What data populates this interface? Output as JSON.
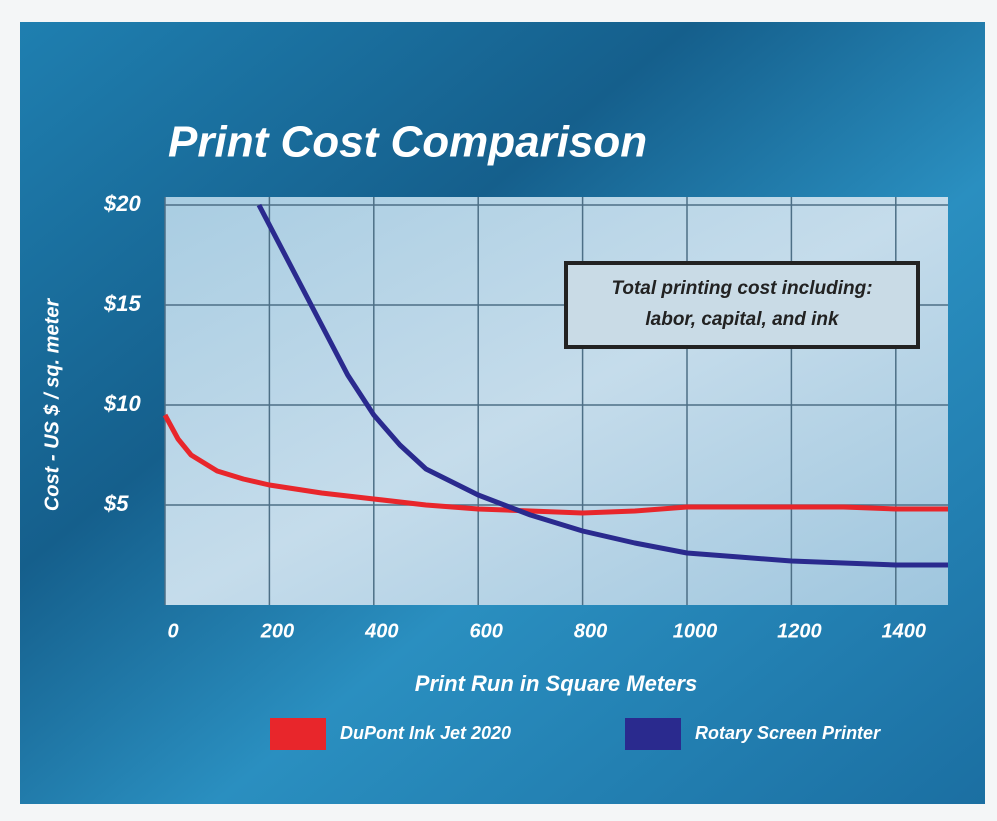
{
  "chart_data": {
    "type": "line",
    "title": "Print Cost Comparison",
    "x_label": "Print Run in Square Meters",
    "y_label": "Cost - US $ / sq. meter",
    "annotation": [
      "Total printing cost including:",
      "labor, capital, and ink"
    ],
    "xlim": [
      0,
      1500
    ],
    "ylim": [
      0,
      20
    ],
    "xticks": [
      0,
      200,
      400,
      600,
      800,
      1000,
      1200,
      1400
    ],
    "yticks": [
      {
        "value": 5,
        "label": "$5"
      },
      {
        "value": 10,
        "label": "$10"
      },
      {
        "value": 15,
        "label": "$15"
      },
      {
        "value": 20,
        "label": "$20"
      }
    ],
    "grid": true,
    "series": [
      {
        "name": "DuPont Ink Jet 2020",
        "color": "#e8262b",
        "x": [
          0,
          25,
          50,
          100,
          150,
          200,
          300,
          400,
          500,
          600,
          700,
          800,
          900,
          1000,
          1100,
          1200,
          1300,
          1400,
          1500
        ],
        "values": [
          9.5,
          8.3,
          7.5,
          6.7,
          6.3,
          6.0,
          5.6,
          5.3,
          5.0,
          4.8,
          4.7,
          4.6,
          4.7,
          4.9,
          4.9,
          4.9,
          4.9,
          4.8,
          4.8
        ]
      },
      {
        "name": "Rotary Screen Printer",
        "color": "#2a2a8e",
        "x": [
          180,
          200,
          250,
          300,
          350,
          400,
          450,
          500,
          600,
          700,
          800,
          900,
          1000,
          1100,
          1200,
          1300,
          1400,
          1500
        ],
        "values": [
          20,
          19,
          16.5,
          14,
          11.5,
          9.5,
          8,
          6.8,
          5.5,
          4.5,
          3.7,
          3.1,
          2.6,
          2.4,
          2.2,
          2.1,
          2.0,
          2.0
        ]
      }
    ]
  }
}
